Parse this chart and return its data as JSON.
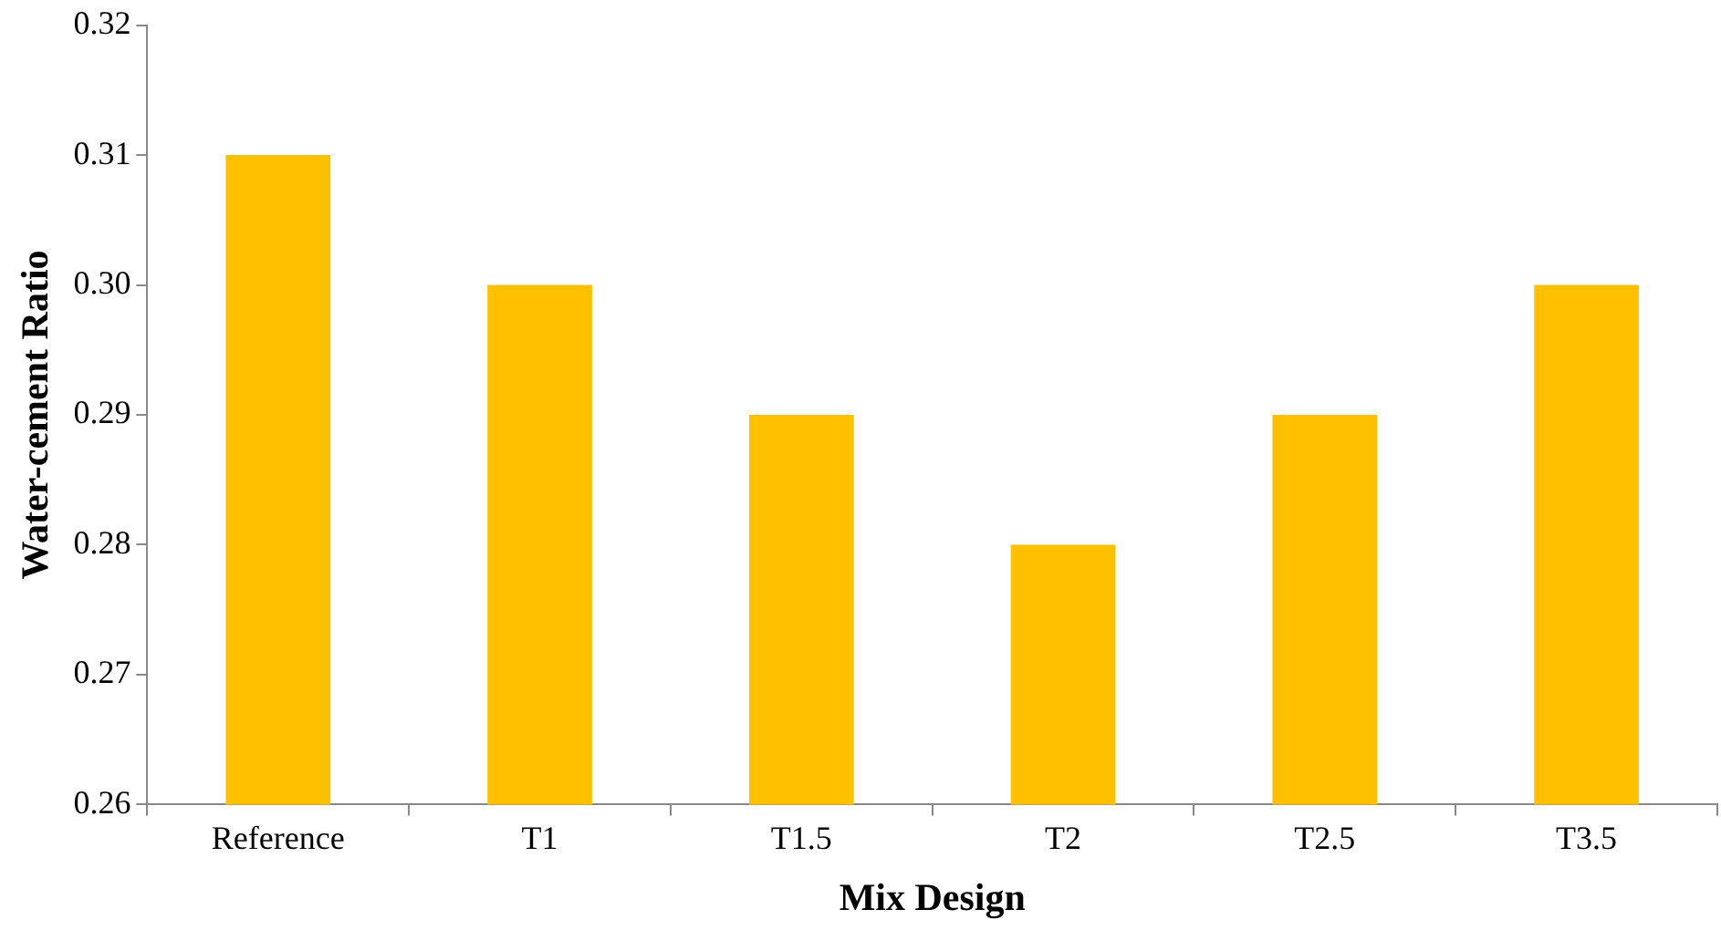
{
  "chart_data": {
    "type": "bar",
    "xlabel": "Mix Design",
    "ylabel": "Water-cement Ratio",
    "categories": [
      "Reference",
      "T1",
      "T1.5",
      "T2",
      "T2.5",
      "T3.5"
    ],
    "values": [
      0.31,
      0.3,
      0.29,
      0.28,
      0.29,
      0.3
    ],
    "color": "#ffc000",
    "ylim": [
      0.26,
      0.32
    ],
    "yticks": [
      {
        "value": 0.26,
        "label": "0.26"
      },
      {
        "value": 0.27,
        "label": "0.27"
      },
      {
        "value": 0.28,
        "label": "0.28"
      },
      {
        "value": 0.29,
        "label": "0.29"
      },
      {
        "value": 0.3,
        "label": "0.30"
      },
      {
        "value": 0.31,
        "label": "0.31"
      },
      {
        "value": 0.32,
        "label": "0.32"
      }
    ]
  }
}
